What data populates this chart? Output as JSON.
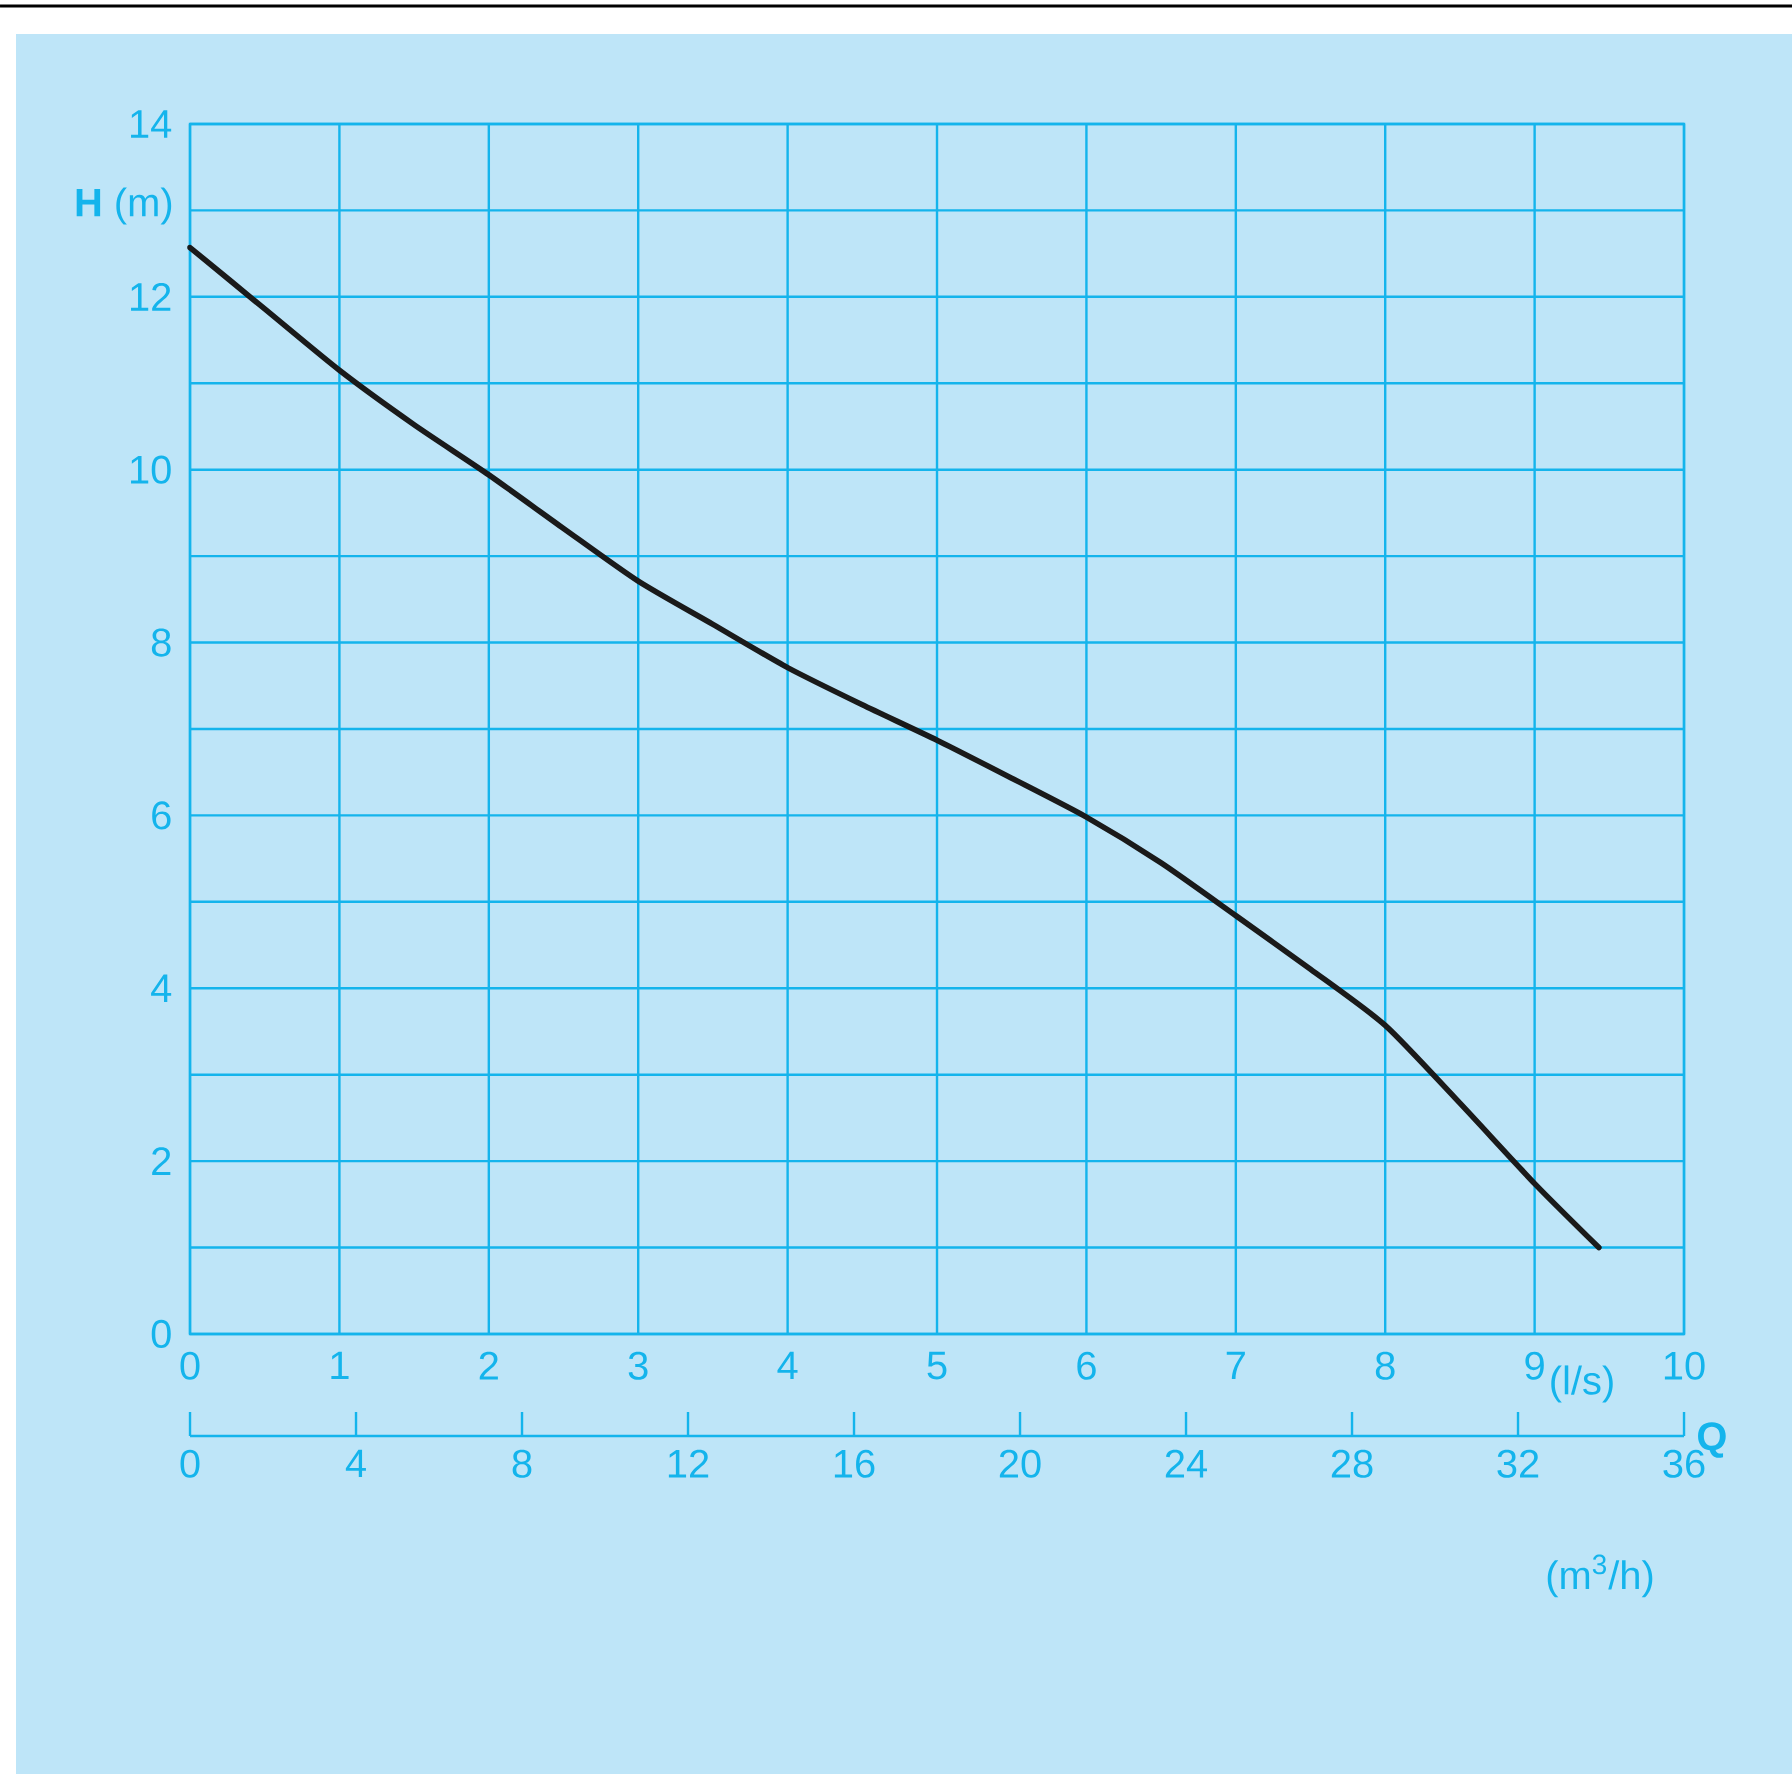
{
  "chart_data": {
    "type": "line",
    "ylabel": "**H** (m)",
    "xlabel": "(l/s)",
    "x2label": "(m$^{3}$/h)",
    "annotations": [
      "Q"
    ],
    "xlim": [
      0,
      10
    ],
    "xticks": [
      0,
      1,
      2,
      3,
      4,
      5,
      6,
      7,
      8,
      9,
      10
    ],
    "ylim": [
      0,
      14
    ],
    "yticks": [
      0,
      {
        "value": 1,
        "label": null
      },
      2,
      {
        "value": 3,
        "label": null
      },
      4,
      {
        "value": 5,
        "label": null
      },
      6,
      {
        "value": 7,
        "label": null
      },
      8,
      {
        "value": 9,
        "label": null
      },
      10,
      {
        "value": 11,
        "label": null
      },
      12,
      {
        "value": 13,
        "label": null
      },
      14
    ],
    "x2lim": [
      0,
      36
    ],
    "x2ticks": [
      0,
      4,
      8,
      12,
      16,
      20,
      24,
      28,
      32,
      36
    ],
    "grid": true,
    "series": [
      {
        "color": "#1a1a1a",
        "x": [
          0,
          0.5,
          1,
          1.5,
          2,
          2.5,
          3,
          3.5,
          4,
          4.5,
          5,
          5.5,
          6,
          6.5,
          7,
          7.5,
          8,
          8.5,
          9,
          9.43
        ],
        "values": [
          12.57,
          11.86,
          11.15,
          10.52,
          9.94,
          9.32,
          8.71,
          8.21,
          7.71,
          7.28,
          6.87,
          6.43,
          5.98,
          5.45,
          4.84,
          4.22,
          3.57,
          2.67,
          1.74,
          1.0
        ]
      }
    ]
  }
}
